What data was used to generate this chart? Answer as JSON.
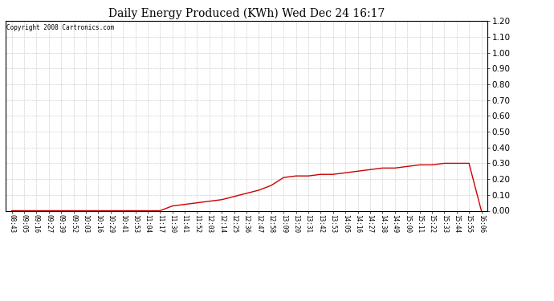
{
  "title": "Daily Energy Produced (KWh) Wed Dec 24 16:17",
  "copyright": "Copyright 2008 Cartronics.com",
  "ylim": [
    0.0,
    1.2
  ],
  "yticks": [
    0.0,
    0.1,
    0.2,
    0.3,
    0.4,
    0.5,
    0.6,
    0.7,
    0.8,
    0.9,
    1.0,
    1.1,
    1.2
  ],
  "line_color": "#cc0000",
  "bg_color": "#ffffff",
  "grid_color": "#aaaaaa",
  "x_labels": [
    "08:43",
    "09:05",
    "09:16",
    "09:27",
    "09:39",
    "09:52",
    "10:03",
    "10:16",
    "10:29",
    "10:41",
    "10:53",
    "11:04",
    "11:17",
    "11:30",
    "11:41",
    "11:52",
    "12:03",
    "12:14",
    "12:25",
    "12:36",
    "12:47",
    "12:58",
    "13:09",
    "13:20",
    "13:31",
    "13:42",
    "13:53",
    "14:05",
    "14:16",
    "14:27",
    "14:38",
    "14:49",
    "15:00",
    "15:11",
    "15:22",
    "15:33",
    "15:44",
    "15:55",
    "16:06"
  ],
  "y_values": [
    0.0,
    0.0,
    0.0,
    0.0,
    0.0,
    0.0,
    0.0,
    0.0,
    0.0,
    0.0,
    0.0,
    0.0,
    0.0,
    0.03,
    0.04,
    0.05,
    0.06,
    0.07,
    0.09,
    0.11,
    0.13,
    0.16,
    0.21,
    0.22,
    0.22,
    0.23,
    0.23,
    0.24,
    0.25,
    0.26,
    0.27,
    0.27,
    0.28,
    0.29,
    0.29,
    0.3,
    0.3,
    0.3,
    0.0
  ],
  "fig_width": 6.9,
  "fig_height": 3.75,
  "dpi": 100
}
